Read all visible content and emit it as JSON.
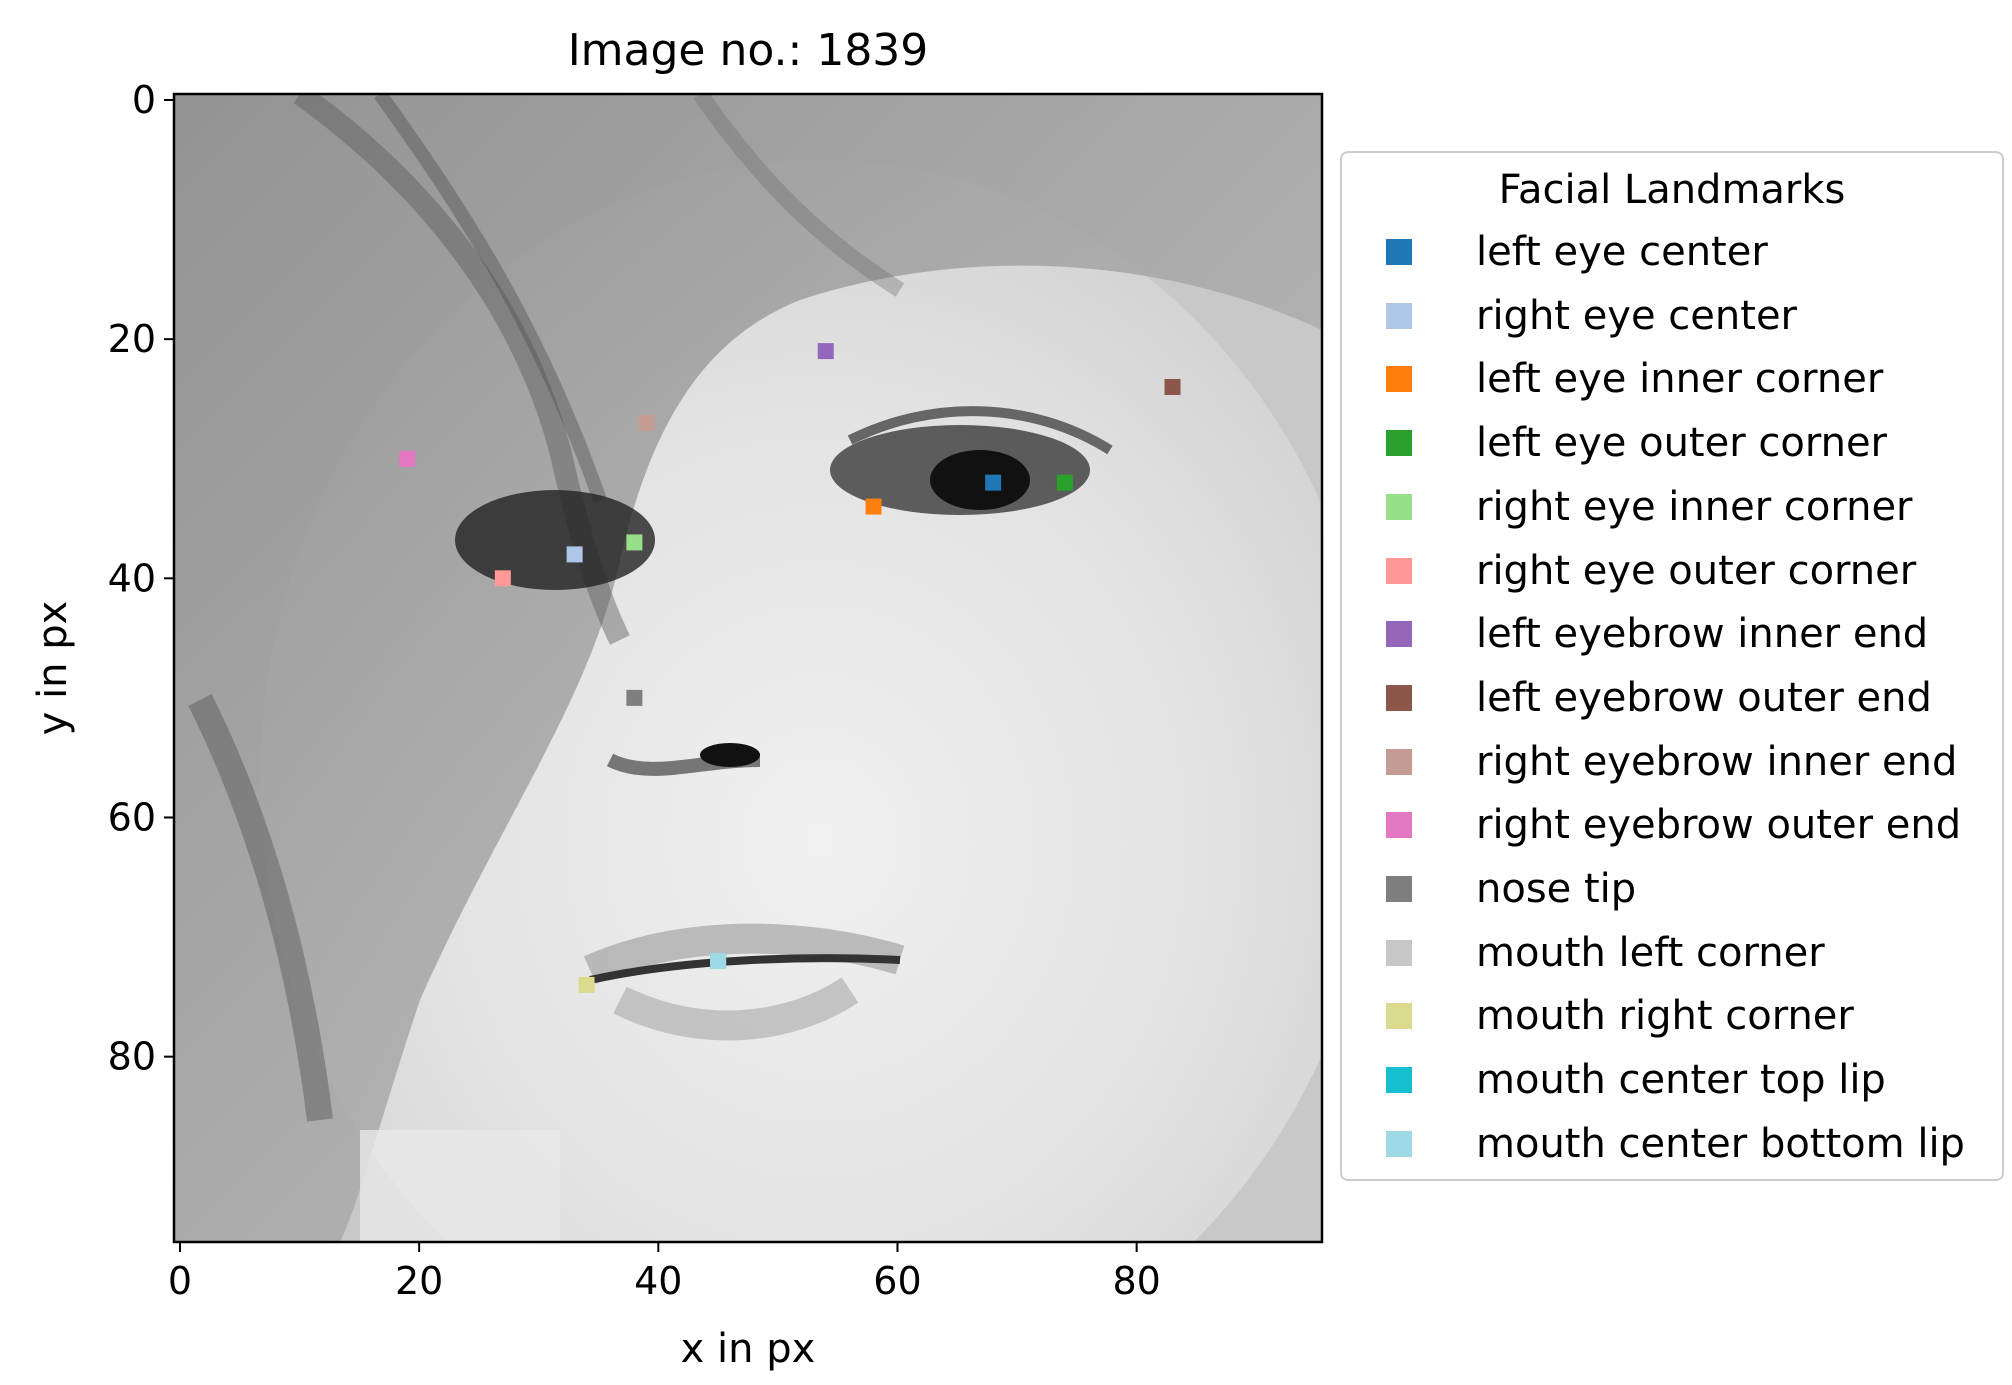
{
  "chart_data": {
    "type": "scatter",
    "title": "Image no.: 1839",
    "xlabel": "x in px",
    "ylabel": "y in px",
    "xlim": [
      -0.5,
      95.5
    ],
    "ylim": [
      95.5,
      -0.5
    ],
    "xticks": [
      0,
      20,
      40,
      60,
      80
    ],
    "yticks": [
      0,
      20,
      40,
      60,
      80
    ],
    "xtick_labels": [
      "0",
      "20",
      "40",
      "60",
      "80"
    ],
    "ytick_labels": [
      "0",
      "20",
      "40",
      "60",
      "80"
    ],
    "background": "grayscale face photo, 96x96 px",
    "legend_title": "Facial Landmarks",
    "legend_position": "right, outside plot",
    "series": [
      {
        "name": "left eye center",
        "color": "#1f77b4",
        "x": 68,
        "y": 32
      },
      {
        "name": "right eye center",
        "color": "#aec7e8",
        "x": 33,
        "y": 38
      },
      {
        "name": "left eye inner corner",
        "color": "#ff7f0e",
        "x": 58,
        "y": 34
      },
      {
        "name": "left eye outer corner",
        "color": "#2ca02c",
        "x": 74,
        "y": 32
      },
      {
        "name": "right eye inner corner",
        "color": "#98df8a",
        "x": 38,
        "y": 37
      },
      {
        "name": "right eye outer corner",
        "color": "#ff9896",
        "x": 27,
        "y": 40
      },
      {
        "name": "left eyebrow inner end",
        "color": "#9467bd",
        "x": 54,
        "y": 21
      },
      {
        "name": "left eyebrow outer end",
        "color": "#8c564b",
        "x": 83,
        "y": 24
      },
      {
        "name": "right eyebrow inner end",
        "color": "#c49c94",
        "x": 39,
        "y": 27
      },
      {
        "name": "right eyebrow outer end",
        "color": "#e377c2",
        "x": 19,
        "y": 30
      },
      {
        "name": "nose tip",
        "color": "#7f7f7f",
        "x": 38,
        "y": 50
      },
      {
        "name": "mouth left corner",
        "color": "#c7c7c7",
        "x": 45,
        "y": 72
      },
      {
        "name": "mouth right corner",
        "color": "#dbdb8d",
        "x": 34,
        "y": 74
      },
      {
        "name": "mouth center top lip",
        "color": "#17becf",
        "x": 45,
        "y": 72
      },
      {
        "name": "mouth center bottom lip",
        "color": "#9edae5",
        "x": 45,
        "y": 72
      }
    ]
  }
}
